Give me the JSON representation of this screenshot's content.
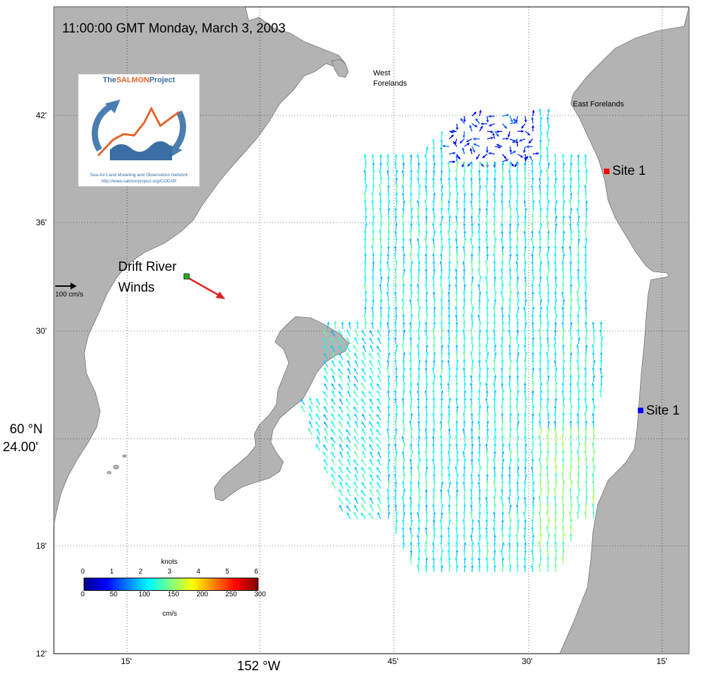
{
  "timestamp": "11:00:00 GMT Monday, March 3, 2003",
  "places": {
    "west_forelands": [
      "West",
      "Forelands"
    ],
    "east_forelands": "East Forelands",
    "drift_river": [
      "Drift River",
      "Winds"
    ]
  },
  "sites": [
    {
      "label": "Site 1",
      "color": "#ff0000"
    },
    {
      "label": "Site 1",
      "color": "#0000ff"
    }
  ],
  "scale_label": "100 cm/s",
  "lat_ticks": [
    "42'",
    "36'",
    "30'",
    "18'",
    "12'"
  ],
  "lat_main": [
    "60 °N",
    "24.00'"
  ],
  "lon_ticks": [
    "15'",
    "45'",
    "30'",
    "15'"
  ],
  "lon_main": "152 °W",
  "colorbar": {
    "units_top": "knots",
    "units_bottom": "cm/s",
    "knots": [
      "0",
      "1",
      "2",
      "3",
      "4",
      "5",
      "6"
    ],
    "cms": [
      "0",
      "50",
      "100",
      "150",
      "200",
      "250",
      "300"
    ]
  },
  "logo": {
    "title_pre": "The",
    "title_hl": "SALMON",
    "title_post": "Project",
    "line1": "Sea-Air-Land Modeling and Observation Network",
    "line2": "http://www.salmonproject.org/CODAR"
  },
  "colors": {
    "land": "#b3b3b3",
    "water": "#ffffff",
    "wind_vector": "#dd2222",
    "wind_station": "#22aa22"
  }
}
